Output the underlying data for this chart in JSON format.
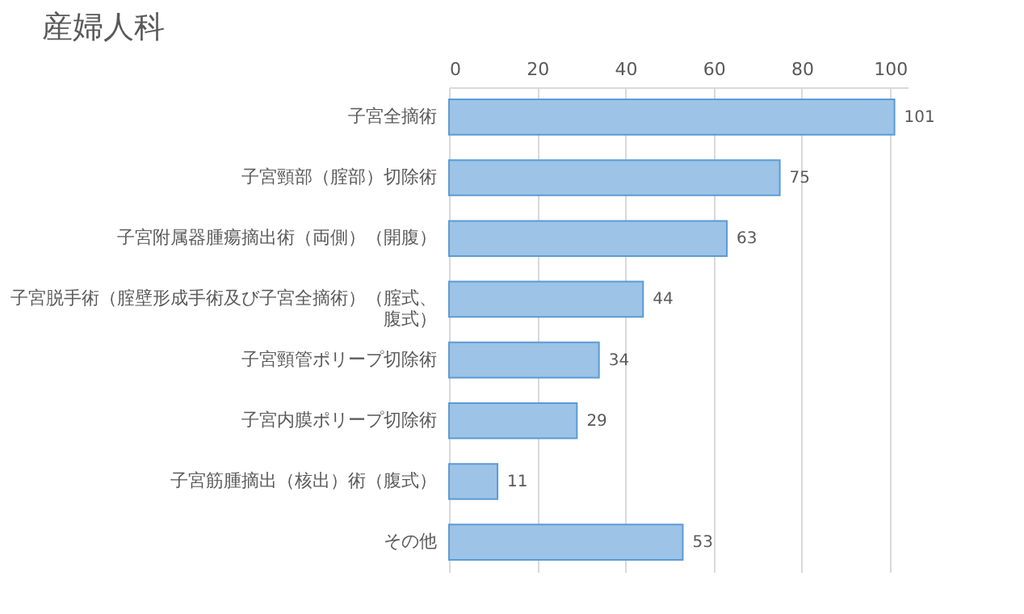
{
  "chart_data": {
    "type": "bar",
    "orientation": "horizontal",
    "title": "産婦人科",
    "categories": [
      "子宮全摘術",
      "子宮頸部（腟部）切除術",
      "子宮附属器腫瘍摘出術（両側）（開腹）",
      "子宮脱手術（腟壁形成手術及び子宮全摘術）（腟式、腹式）",
      "子宮頸管ポリープ切除術",
      "子宮内膜ポリープ切除術",
      "子宮筋腫摘出（核出）術（腹式）",
      "その他"
    ],
    "values": [
      101,
      75,
      63,
      44,
      34,
      29,
      11,
      53
    ],
    "color": "#9dc3e6",
    "xlim": [
      0,
      104
    ],
    "xticks": [
      0,
      20,
      40,
      60,
      80,
      100
    ],
    "grid": "x",
    "data_labels": true
  }
}
